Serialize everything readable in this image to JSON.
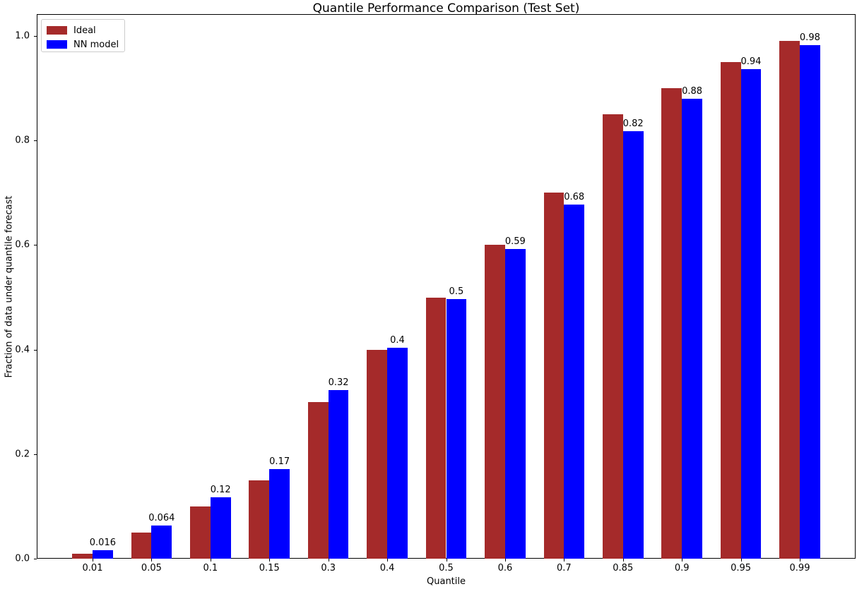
{
  "chart_data": {
    "type": "bar",
    "title": "Quantile Performance Comparison (Test Set)",
    "xlabel": "Quantile",
    "ylabel": "Fraction of data under quantile forecast",
    "categories": [
      "0.01",
      "0.05",
      "0.1",
      "0.15",
      "0.3",
      "0.4",
      "0.5",
      "0.6",
      "0.7",
      "0.85",
      "0.9",
      "0.95",
      "0.99"
    ],
    "series": [
      {
        "name": "Ideal",
        "color": "#A52A2A",
        "values": [
          0.01,
          0.05,
          0.1,
          0.15,
          0.3,
          0.4,
          0.5,
          0.6,
          0.7,
          0.85,
          0.9,
          0.95,
          0.99
        ]
      },
      {
        "name": "NN model",
        "color": "#0000FF",
        "values": [
          0.016,
          0.064,
          0.118,
          0.172,
          0.322,
          0.404,
          0.497,
          0.593,
          0.678,
          0.818,
          0.88,
          0.936,
          0.983
        ],
        "bar_labels": [
          "0.016",
          "0.064",
          "0.12",
          "0.17",
          "0.32",
          "0.4",
          "0.5",
          "0.59",
          "0.68",
          "0.82",
          "0.88",
          "0.94",
          "0.98"
        ]
      }
    ],
    "yticks": [
      {
        "label": "0.0",
        "value": 0.0
      },
      {
        "label": "0.2",
        "value": 0.2
      },
      {
        "label": "0.4",
        "value": 0.4
      },
      {
        "label": "0.6",
        "value": 0.6
      },
      {
        "label": "0.8",
        "value": 0.8
      },
      {
        "label": "1.0",
        "value": 1.0
      }
    ],
    "ylim": [
      0,
      1.042
    ],
    "grid": false,
    "legend_position": "upper left"
  }
}
